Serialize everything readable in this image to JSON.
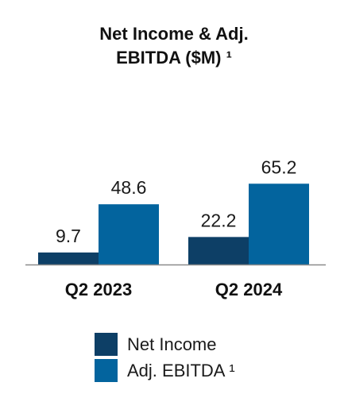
{
  "chart_data": {
    "type": "bar",
    "title_lines": [
      "Net Income & Adj.",
      "EBITDA ($M) ¹"
    ],
    "categories": [
      "Q2 2023",
      "Q2 2024"
    ],
    "series": [
      {
        "name": "Net Income",
        "values": [
          9.7,
          22.2
        ],
        "color": "#0d3f66"
      },
      {
        "name": "Adj. EBITDA ¹",
        "values": [
          48.6,
          65.2
        ],
        "color": "#03649e"
      }
    ],
    "value_labels": [
      [
        "9.7",
        "22.2"
      ],
      [
        "48.6",
        "65.2"
      ]
    ],
    "xlabel": "",
    "ylabel": "",
    "ylim": [
      0,
      70
    ],
    "grid": false,
    "legend_position": "bottom"
  },
  "colors": {
    "axis": "#8a8a8a",
    "text": "#111111"
  }
}
